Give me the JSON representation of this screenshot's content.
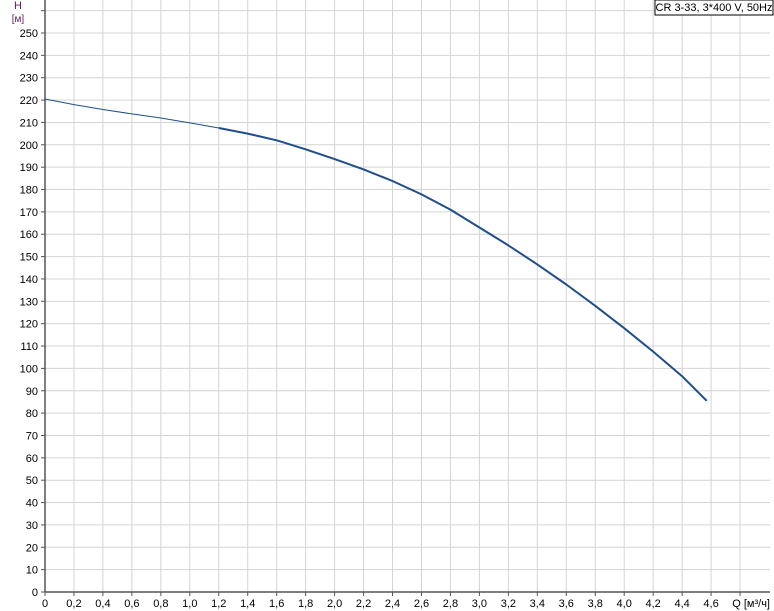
{
  "chart_data": {
    "type": "line",
    "title": "CR 3-33, 3*400 V, 50Hz",
    "xlabel": "Q [м³/ч]",
    "ylabel": "H",
    "yunit": "[м]",
    "xlim": [
      0,
      4.8
    ],
    "ylim": [
      0,
      260
    ],
    "grid": true,
    "x_ticks": [
      "0",
      "0,2",
      "0,4",
      "0,6",
      "0,8",
      "1,0",
      "1,2",
      "1,4",
      "1,6",
      "1,8",
      "2,0",
      "2,2",
      "2,4",
      "2,6",
      "2,8",
      "3,0",
      "3,2",
      "3,4",
      "3,6",
      "3,8",
      "4,0",
      "4,2",
      "4,4",
      "4,6"
    ],
    "y_ticks": [
      "0",
      "10",
      "20",
      "30",
      "40",
      "50",
      "60",
      "70",
      "80",
      "90",
      "100",
      "110",
      "120",
      "130",
      "140",
      "150",
      "160",
      "170",
      "180",
      "190",
      "200",
      "210",
      "220",
      "230",
      "240",
      "250"
    ],
    "series": [
      {
        "color": "#1f4e8c",
        "x": [
          0,
          0.2,
          0.4,
          0.6,
          0.8,
          1.0,
          1.2,
          1.4,
          1.6,
          1.8,
          2.0,
          2.2,
          2.4,
          2.6,
          2.8,
          3.0,
          3.2,
          3.4,
          3.6,
          3.8,
          4.0,
          4.2,
          4.4,
          4.57
        ],
        "y": [
          220.5,
          218,
          215.8,
          213.8,
          212,
          209.8,
          207.5,
          205,
          202,
          198,
          193.6,
          189,
          183.8,
          177.8,
          171,
          163,
          155,
          146.5,
          137.5,
          128,
          118,
          107.5,
          96.5,
          85.5
        ]
      }
    ]
  }
}
